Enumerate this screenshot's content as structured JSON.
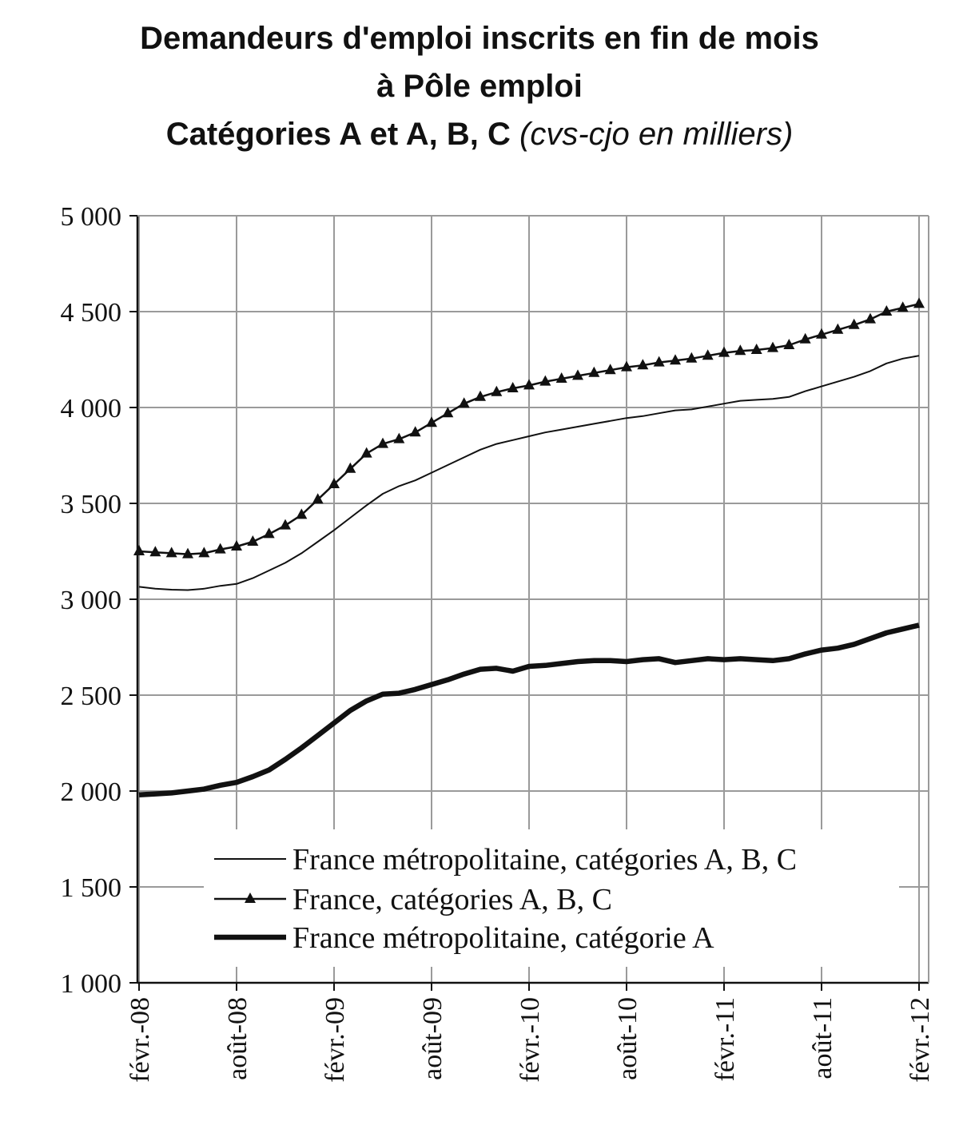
{
  "chart_data": {
    "type": "line",
    "title": "Demandeurs d'emploi inscrits en fin de mois",
    "title_line2": "à Pôle emploi",
    "subtitle": "Catégories A et A, B, C",
    "subtitle_unit": "(cvs-cjo en milliers)",
    "ylim": [
      1000,
      5000
    ],
    "y_ticks": [
      1000,
      1500,
      2000,
      2500,
      3000,
      3500,
      4000,
      4500,
      5000
    ],
    "y_tick_labels": [
      "1 000",
      "1 500",
      "2 000",
      "2 500",
      "3 000",
      "3 500",
      "4 000",
      "4 500",
      "5 000"
    ],
    "x_tick_labels": [
      "févr.-08",
      "août-08",
      "févr.-09",
      "août-09",
      "févr.-10",
      "août-10",
      "févr.-11",
      "août-11",
      "févr.-12"
    ],
    "x": [
      "2008-02",
      "2008-03",
      "2008-04",
      "2008-05",
      "2008-06",
      "2008-07",
      "2008-08",
      "2008-09",
      "2008-10",
      "2008-11",
      "2008-12",
      "2009-01",
      "2009-02",
      "2009-03",
      "2009-04",
      "2009-05",
      "2009-06",
      "2009-07",
      "2009-08",
      "2009-09",
      "2009-10",
      "2009-11",
      "2009-12",
      "2010-01",
      "2010-02",
      "2010-03",
      "2010-04",
      "2010-05",
      "2010-06",
      "2010-07",
      "2010-08",
      "2010-09",
      "2010-10",
      "2010-11",
      "2010-12",
      "2011-01",
      "2011-02",
      "2011-03",
      "2011-04",
      "2011-05",
      "2011-06",
      "2011-07",
      "2011-08",
      "2011-09",
      "2011-10",
      "2011-11",
      "2011-12",
      "2012-01",
      "2012-02"
    ],
    "grid": true,
    "legend_position": "bottom-center",
    "series": [
      {
        "name": "France métropolitaine, catégories A, B, C",
        "style": "thin",
        "color": "#111111",
        "values": [
          3065,
          3055,
          3050,
          3048,
          3055,
          3070,
          3080,
          3110,
          3150,
          3190,
          3240,
          3300,
          3360,
          3425,
          3490,
          3550,
          3590,
          3620,
          3660,
          3700,
          3740,
          3780,
          3810,
          3830,
          3850,
          3870,
          3885,
          3900,
          3915,
          3930,
          3945,
          3955,
          3970,
          3985,
          3990,
          4005,
          4020,
          4035,
          4040,
          4045,
          4055,
          4085,
          4110,
          4135,
          4160,
          4190,
          4230,
          4255,
          4270
        ]
      },
      {
        "name": "France, catégories A, B, C",
        "style": "triangles",
        "color": "#111111",
        "values": [
          3250,
          3245,
          3240,
          3235,
          3240,
          3260,
          3275,
          3300,
          3340,
          3385,
          3440,
          3520,
          3600,
          3680,
          3760,
          3810,
          3835,
          3870,
          3920,
          3970,
          4020,
          4055,
          4080,
          4100,
          4115,
          4135,
          4150,
          4165,
          4180,
          4195,
          4210,
          4220,
          4235,
          4245,
          4255,
          4270,
          4285,
          4295,
          4300,
          4310,
          4325,
          4355,
          4380,
          4405,
          4430,
          4460,
          4500,
          4520,
          4540
        ]
      },
      {
        "name": "France métropolitaine, catégorie A",
        "style": "thick",
        "color": "#111111",
        "values": [
          1980,
          1985,
          1990,
          2000,
          2010,
          2030,
          2045,
          2075,
          2110,
          2165,
          2225,
          2290,
          2355,
          2420,
          2470,
          2505,
          2510,
          2530,
          2555,
          2580,
          2610,
          2635,
          2640,
          2625,
          2650,
          2655,
          2665,
          2675,
          2680,
          2680,
          2675,
          2685,
          2690,
          2670,
          2680,
          2690,
          2685,
          2690,
          2685,
          2680,
          2690,
          2715,
          2735,
          2745,
          2765,
          2795,
          2825,
          2845,
          2865
        ]
      }
    ]
  }
}
